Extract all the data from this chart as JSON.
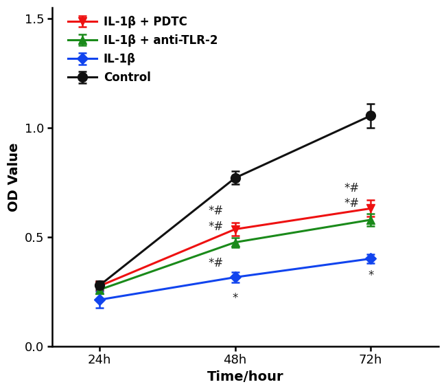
{
  "x_positions": [
    0,
    1,
    2
  ],
  "x_labels": [
    "24h",
    "48h",
    "72h"
  ],
  "series": [
    {
      "label": "IL-1β + PDTC",
      "color": "#EE1111",
      "marker": "v",
      "markersize": 9,
      "y": [
        0.275,
        0.535,
        0.63
      ],
      "yerr": [
        0.022,
        0.03,
        0.038
      ]
    },
    {
      "label": "IL-1β + anti-TLR-2",
      "color": "#1A8A1A",
      "marker": "^",
      "markersize": 9,
      "y": [
        0.258,
        0.475,
        0.578
      ],
      "yerr": [
        0.018,
        0.022,
        0.028
      ]
    },
    {
      "label": "IL-1β",
      "color": "#1144EE",
      "marker": "D",
      "markersize": 8,
      "y": [
        0.212,
        0.315,
        0.4
      ],
      "yerr": [
        0.038,
        0.025,
        0.02
      ]
    },
    {
      "label": "Control",
      "color": "#111111",
      "marker": "o",
      "markersize": 10,
      "y": [
        0.278,
        0.77,
        1.055
      ],
      "yerr": [
        0.018,
        0.03,
        0.055
      ]
    }
  ],
  "ylabel": "OD Value",
  "xlabel": "Time/hour",
  "ylim": [
    0.0,
    1.55
  ],
  "yticks": [
    0.0,
    0.5,
    1.0,
    1.5
  ],
  "linewidth": 2.2,
  "legend_loc": "upper left",
  "background_color": "#ffffff",
  "font_size": 14,
  "tick_fontsize": 13
}
